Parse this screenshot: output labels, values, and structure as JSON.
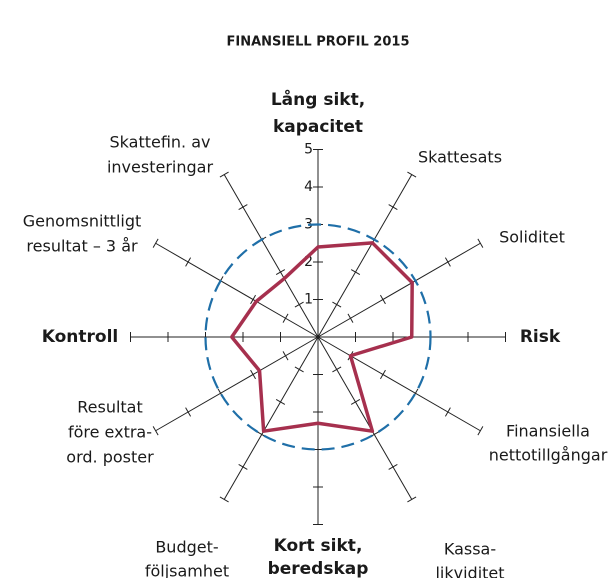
{
  "chart_data": {
    "type": "radar",
    "title": "FINANSIELL PROFIL 2015",
    "categories": [
      [
        "Lång sikt,",
        "kapacitet"
      ],
      [
        "Skattesats"
      ],
      [
        "Soliditet"
      ],
      [
        "Risk"
      ],
      [
        "Finansiella",
        "nettotillgångar"
      ],
      [
        "Kassa-",
        "likviditet"
      ],
      [
        "Kort sikt,",
        "beredskap"
      ],
      [
        "Budget-",
        "följsamhet"
      ],
      [
        "Resultat",
        "före extra-",
        "ord. poster"
      ],
      [
        "Kontroll"
      ],
      [
        "Genomsnittligt",
        "resultat – 3 år"
      ],
      [
        "Skattefin. av",
        "investeringar"
      ]
    ],
    "emphasized": [
      0,
      3,
      6,
      9
    ],
    "values": [
      2.4,
      2.9,
      2.9,
      2.5,
      1.0,
      2.9,
      2.3,
      2.9,
      1.8,
      2.3,
      1.9,
      1.8
    ],
    "color": "#a6304e",
    "reference_value": 3,
    "reference_color": "#1f6fa8",
    "rlim": [
      0,
      5
    ],
    "rticks": [
      1,
      2,
      3,
      4,
      5
    ]
  }
}
